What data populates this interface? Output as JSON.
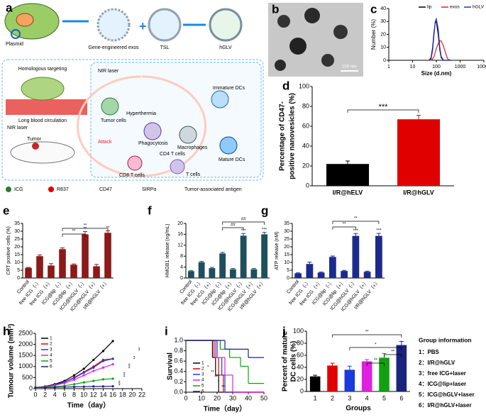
{
  "panel_labels": [
    "a",
    "b",
    "c",
    "d",
    "e",
    "f",
    "g",
    "h",
    "i",
    "j"
  ],
  "panel_a": {
    "labels": [
      "Plasmid",
      "Gene-engineered exos",
      "TSL",
      "hGLV",
      "Homologous targeting",
      "Long blood circulation",
      "NIR laser",
      "Tumor",
      "NIR laser",
      "Tumor cells",
      "Hyperthermia",
      "Immature DCs",
      "Phagocytosis",
      "Macrophages",
      "Attack",
      "CD4 T cells",
      "Mature DCs",
      "CD8 T cells",
      "T cells"
    ],
    "legend": [
      "ICG",
      "R837",
      "CD47",
      "SIRPα",
      "Tumor-associated antigen"
    ]
  },
  "panel_b": {
    "scale_bar": "100 nm"
  },
  "group_info": {
    "title": "Group information",
    "items": [
      "1：PBS",
      "2：I/R@hGLV",
      "3：free ICG+laser",
      "4：ICG@lip+laser",
      "5：ICG@hGLV+laser",
      "6：I/R@hGLV+laser"
    ]
  },
  "chart_data": [
    {
      "type": "line",
      "xlabel": "Size (d.nm)",
      "ylabel": "Number (%)",
      "xlog": true,
      "xlim": [
        1,
        10000
      ],
      "xticks": [
        1,
        10,
        100,
        1000,
        10000
      ],
      "ylim": [
        0,
        40
      ],
      "yticks": [
        0,
        10,
        20,
        30,
        40
      ],
      "x": [
        50,
        60,
        70,
        80,
        90,
        100,
        120,
        140,
        160,
        200,
        250,
        300,
        400
      ],
      "series": [
        {
          "name": "lip",
          "color": "#000000",
          "values": [
            0,
            2,
            10,
            22,
            29,
            30,
            20,
            8,
            2,
            0,
            0,
            0,
            0
          ]
        },
        {
          "name": "exos",
          "color": "#e02020",
          "values": [
            0,
            0,
            1,
            3,
            6,
            9,
            13,
            15,
            15,
            11,
            5,
            1,
            0
          ]
        },
        {
          "name": "hGLV",
          "color": "#2030c0",
          "values": [
            0,
            1,
            8,
            20,
            30,
            32,
            24,
            10,
            3,
            0,
            0,
            0,
            0
          ]
        }
      ]
    },
    {
      "type": "bar",
      "ylabel": [
        "Percentage of CD47-",
        "positive nanovesicles (%)"
      ],
      "categories": [
        "I/R@hELV",
        "I/R@hGLV"
      ],
      "values": [
        22,
        67
      ],
      "errors": [
        3,
        4
      ],
      "colors": [
        "#000000",
        "#e00000"
      ],
      "ylim": [
        0,
        100
      ],
      "yticks": [
        0,
        20,
        40,
        60,
        80,
        100
      ],
      "annotations": [
        "***"
      ]
    },
    {
      "type": "bar",
      "ylabel": [
        "CRT positive cells (%)"
      ],
      "categories": [
        "Control",
        "free ICG（-）",
        "free ICG（+）",
        "ICG@lip（-）",
        "ICG@lip（+）",
        "ICG@hGLV（-）",
        "ICG@hGLV（+）",
        "I/R@hGLV（+）"
      ],
      "values": [
        6.5,
        14,
        8,
        18.5,
        8.5,
        28,
        7.5,
        29
      ],
      "errors": [
        0.3,
        0.8,
        1.2,
        0.8,
        0.5,
        1.8,
        1.2,
        1.2
      ],
      "color": "#8b1a1a",
      "ylim": [
        0,
        35
      ],
      "yticks": [
        0,
        5,
        10,
        15,
        20,
        25,
        30,
        35
      ],
      "significance": [
        null,
        null,
        null,
        null,
        null,
        "**",
        null,
        "**"
      ],
      "annotations": [
        "**",
        "**"
      ]
    },
    {
      "type": "bar",
      "ylabel": [
        "HMGB1 release (ng/mL)"
      ],
      "categories": [
        "Control",
        "free ICG（-）",
        "free ICG（+）",
        "ICG@lip（-）",
        "ICG@lip（+）",
        "ICG@hGLV（-）",
        "ICG@hGLV（+）",
        "I/R@hGLV（+）"
      ],
      "values": [
        2.5,
        5.8,
        3.6,
        9,
        3.2,
        15.5,
        3.2,
        16
      ],
      "errors": [
        0.2,
        0.3,
        0.3,
        0.4,
        0.3,
        0.8,
        0.3,
        0.7
      ],
      "color": "#1e4f5e",
      "ylim": [
        0,
        20
      ],
      "yticks": [
        0,
        4,
        8,
        12,
        16,
        20
      ],
      "significance": [
        null,
        null,
        null,
        null,
        null,
        "***",
        null,
        "***"
      ],
      "annotations": [
        "##",
        "##"
      ]
    },
    {
      "type": "bar",
      "ylabel": [
        "ATP release (nM)"
      ],
      "categories": [
        "Control",
        "free ICG（-）",
        "free ICG（+）",
        "ICG@lip（-）",
        "ICG@lip（+）",
        "ICG@hGLV（-）",
        "ICG@hGLV（+）",
        "I/R@hGLV（+）"
      ],
      "values": [
        3,
        9,
        3.5,
        13.5,
        4.5,
        27,
        4,
        27
      ],
      "errors": [
        0.3,
        1.2,
        0.3,
        0.6,
        0.4,
        1.5,
        0.4,
        1.6
      ],
      "color": "#1c2a8c",
      "ylim": [
        0,
        35
      ],
      "yticks": [
        0,
        5,
        10,
        15,
        20,
        25,
        30,
        35
      ],
      "significance": [
        null,
        null,
        null,
        null,
        null,
        "***",
        null,
        "***"
      ],
      "annotations": [
        "**",
        "**"
      ]
    },
    {
      "type": "line",
      "xlabel": "Time（day）",
      "ylabel": "Tumour volume (mm³)",
      "xlim": [
        0,
        22
      ],
      "xticks": [
        0,
        2,
        4,
        6,
        8,
        10,
        12,
        14,
        16,
        18,
        20,
        22
      ],
      "ylim": [
        0,
        2500
      ],
      "yticks": [
        0,
        500,
        1000,
        1500,
        2000,
        2500
      ],
      "x": [
        0,
        2,
        4,
        6,
        8,
        10,
        12,
        14,
        16
      ],
      "series": [
        {
          "name": "1",
          "color": "#000000",
          "values": [
            50,
            100,
            200,
            350,
            600,
            900,
            1300,
            1700,
            2150
          ]
        },
        {
          "name": "2",
          "color": "#e00000",
          "values": [
            50,
            90,
            170,
            300,
            500,
            750,
            1000,
            1300,
            1350
          ]
        },
        {
          "name": "3",
          "color": "#1a3adb",
          "values": [
            50,
            90,
            170,
            300,
            480,
            720,
            950,
            1250,
            1350
          ]
        },
        {
          "name": "4",
          "color": "#e020e0",
          "values": [
            50,
            80,
            150,
            250,
            400,
            600,
            800,
            950,
            1100
          ]
        },
        {
          "name": "5",
          "color": "#10a010",
          "values": [
            50,
            60,
            90,
            130,
            200,
            280,
            350,
            420,
            450
          ]
        },
        {
          "name": "6",
          "color": "#1a237e",
          "values": [
            50,
            50,
            60,
            70,
            80,
            90,
            100,
            100,
            110
          ]
        }
      ],
      "annotations": [
        "***",
        "***",
        "***",
        "**",
        "**"
      ]
    },
    {
      "type": "step",
      "xlabel": "Time（day）",
      "ylabel": "Survival",
      "xlim": [
        0,
        50
      ],
      "xticks": [
        0,
        10,
        20,
        30,
        40,
        50
      ],
      "ylim": [
        0,
        1
      ],
      "yticks": [
        {
          "value": 0,
          "label": "0.0"
        },
        0.2,
        0.4,
        0.6,
        0.8,
        {
          "value": 1,
          "label": "1.0"
        }
      ],
      "series": [
        {
          "name": "1",
          "color": "#000000",
          "x": [
            0,
            17,
            19,
            21
          ],
          "values": [
            1,
            0.67,
            0.33,
            0
          ]
        },
        {
          "name": "2",
          "color": "#e00000",
          "x": [
            0,
            18,
            21,
            24
          ],
          "values": [
            1,
            0.67,
            0.33,
            0
          ]
        },
        {
          "name": "3",
          "color": "#1a3adb",
          "x": [
            0,
            20,
            23,
            25
          ],
          "values": [
            1,
            0.67,
            0.33,
            0
          ]
        },
        {
          "name": "4",
          "color": "#e020e0",
          "x": [
            0,
            19,
            25,
            30
          ],
          "values": [
            1,
            0.67,
            0.33,
            0
          ]
        },
        {
          "name": "5",
          "color": "#10a010",
          "x": [
            0,
            22,
            28,
            35,
            40
          ],
          "values": [
            1,
            0.83,
            0.67,
            0.5,
            0.17
          ]
        },
        {
          "name": "6",
          "color": "#1a237e",
          "x": [
            0,
            25,
            40
          ],
          "values": [
            1,
            0.83,
            0.67
          ]
        }
      ],
      "annotations": [
        "*",
        "**",
        "**",
        "*",
        "**"
      ]
    },
    {
      "type": "bar",
      "xlabel": "Groups",
      "ylabel": [
        "Percent of mature",
        "DC cells (%)"
      ],
      "categories": [
        "1",
        "2",
        "3",
        "4",
        "5",
        "6"
      ],
      "values": [
        25,
        43,
        36,
        50,
        56,
        77
      ],
      "errors": [
        2,
        4,
        6,
        3,
        7,
        6
      ],
      "colors": [
        "#000000",
        "#e00000",
        "#1a3adb",
        "#e020e0",
        "#10a010",
        "#1a237e"
      ],
      "ylim": [
        0,
        100
      ],
      "yticks": [
        0,
        20,
        40,
        60,
        80,
        100
      ],
      "annotations": [
        "**",
        "*",
        "**",
        "**"
      ]
    }
  ]
}
